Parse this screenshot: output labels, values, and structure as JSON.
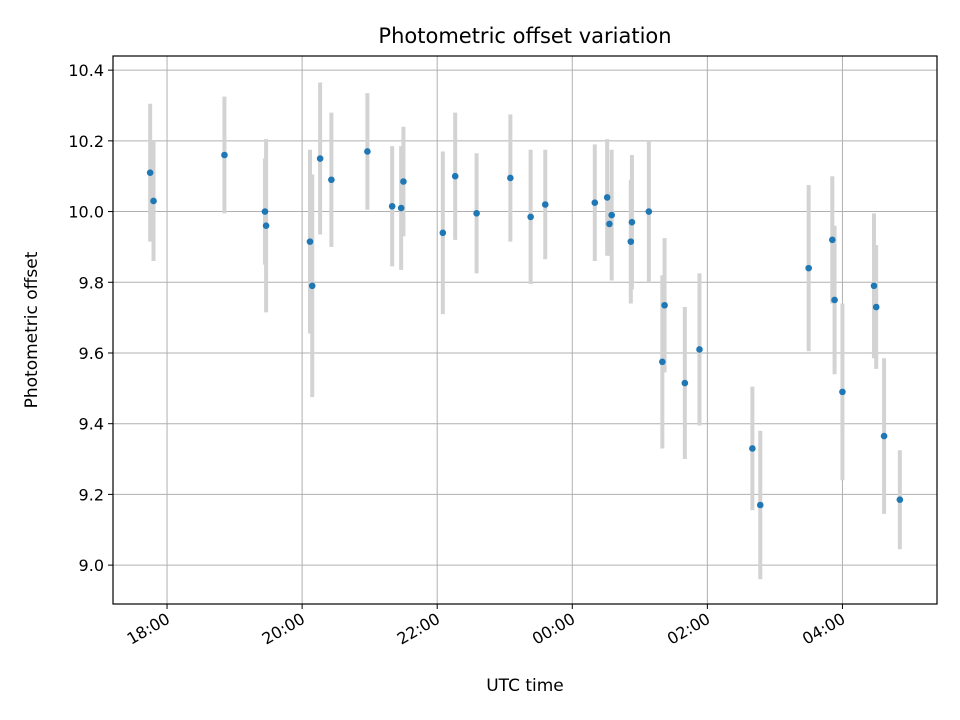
{
  "chart_data": {
    "type": "scatter",
    "title": "Photometric offset variation",
    "xlabel": "UTC time",
    "ylabel": "Photometric offset",
    "x_ticks": [
      "18:00",
      "20:00",
      "22:00",
      "00:00",
      "02:00",
      "04:00"
    ],
    "y_ticks": [
      "9.0",
      "9.2",
      "9.4",
      "9.6",
      "9.8",
      "10.0",
      "10.2",
      "10.4"
    ],
    "xlim": [
      "17:12",
      "05:24"
    ],
    "ylim": [
      8.89,
      10.44
    ],
    "grid": true,
    "marker_color": "#1f77b4",
    "errorbar_color": "#d3d3d3",
    "points": [
      {
        "x": "17:45",
        "y": 10.11,
        "err": 0.195
      },
      {
        "x": "17:48",
        "y": 10.03,
        "err": 0.17
      },
      {
        "x": "18:51",
        "y": 10.16,
        "err": 0.165
      },
      {
        "x": "19:27",
        "y": 10.0,
        "err": 0.15
      },
      {
        "x": "19:28",
        "y": 9.96,
        "err": 0.245
      },
      {
        "x": "20:07",
        "y": 9.915,
        "err": 0.26
      },
      {
        "x": "20:09",
        "y": 9.79,
        "err": 0.315
      },
      {
        "x": "20:16",
        "y": 10.15,
        "err": 0.215
      },
      {
        "x": "20:26",
        "y": 10.09,
        "err": 0.19
      },
      {
        "x": "20:58",
        "y": 10.17,
        "err": 0.165
      },
      {
        "x": "21:20",
        "y": 10.015,
        "err": 0.17
      },
      {
        "x": "21:28",
        "y": 10.01,
        "err": 0.175
      },
      {
        "x": "21:30",
        "y": 10.085,
        "err": 0.155
      },
      {
        "x": "22:05",
        "y": 9.94,
        "err": 0.23
      },
      {
        "x": "22:16",
        "y": 10.1,
        "err": 0.18
      },
      {
        "x": "22:35",
        "y": 9.995,
        "err": 0.17
      },
      {
        "x": "23:05",
        "y": 10.095,
        "err": 0.18
      },
      {
        "x": "23:23",
        "y": 9.985,
        "err": 0.19
      },
      {
        "x": "23:36",
        "y": 10.02,
        "err": 0.155
      },
      {
        "x": "00:20",
        "y": 10.025,
        "err": 0.165
      },
      {
        "x": "00:31",
        "y": 10.04,
        "err": 0.165
      },
      {
        "x": "00:33",
        "y": 9.965,
        "err": 0.09
      },
      {
        "x": "00:35",
        "y": 9.99,
        "err": 0.185
      },
      {
        "x": "00:52",
        "y": 9.915,
        "err": 0.175
      },
      {
        "x": "00:53",
        "y": 9.97,
        "err": 0.19
      },
      {
        "x": "01:08",
        "y": 10.0,
        "err": 0.2
      },
      {
        "x": "01:20",
        "y": 9.575,
        "err": 0.245
      },
      {
        "x": "01:22",
        "y": 9.735,
        "err": 0.19
      },
      {
        "x": "01:40",
        "y": 9.515,
        "err": 0.215
      },
      {
        "x": "01:53",
        "y": 9.61,
        "err": 0.215
      },
      {
        "x": "02:40",
        "y": 9.33,
        "err": 0.175
      },
      {
        "x": "02:47",
        "y": 9.17,
        "err": 0.21
      },
      {
        "x": "03:30",
        "y": 9.84,
        "err": 0.235
      },
      {
        "x": "03:51",
        "y": 9.92,
        "err": 0.18
      },
      {
        "x": "03:53",
        "y": 9.75,
        "err": 0.21
      },
      {
        "x": "04:00",
        "y": 9.49,
        "err": 0.25
      },
      {
        "x": "04:28",
        "y": 9.79,
        "err": 0.205
      },
      {
        "x": "04:30",
        "y": 9.73,
        "err": 0.175
      },
      {
        "x": "04:37",
        "y": 9.365,
        "err": 0.22
      },
      {
        "x": "04:51",
        "y": 9.185,
        "err": 0.14
      }
    ]
  }
}
